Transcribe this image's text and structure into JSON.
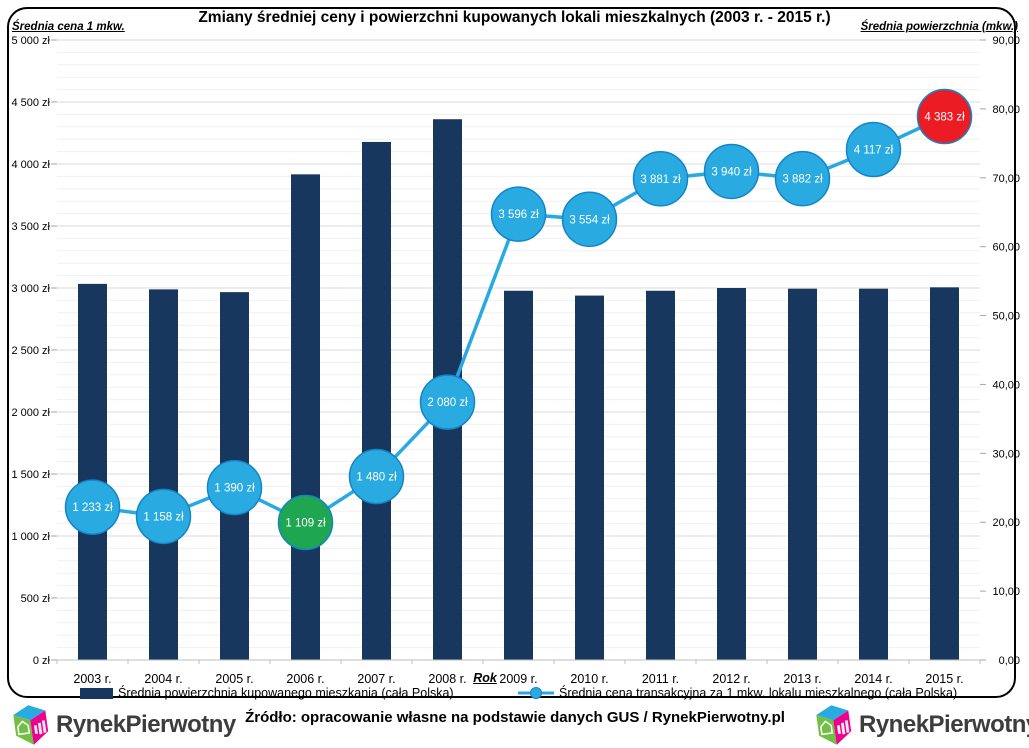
{
  "chart_data": {
    "type": "combo_bar_line",
    "title": "Zmiany średniej ceny i powierzchni kupowanych lokali mieszkalnych (2003 r. - 2015 r.)",
    "categories": [
      "2003 r.",
      "2004 r.",
      "2005 r.",
      "2006 r.",
      "2007 r.",
      "2008 r.",
      "2009 r.",
      "2010 r.",
      "2011 r.",
      "2012 r.",
      "2013 r.",
      "2014 r.",
      "2015 r."
    ],
    "x_axis_title": "Rok",
    "grid": true,
    "legend_position": "bottom",
    "left_axis": {
      "label": "Średnia cena 1 mkw.",
      "min": 0,
      "max": 5000,
      "step": 500,
      "minor_step": 100,
      "ticks": [
        "5 000 zł",
        "4 500 zł",
        "4 000 zł",
        "3 500 zł",
        "3 000 zł",
        "2 500 zł",
        "2 000 zł",
        "1 500 zł",
        "1 000 zł",
        "500 zł",
        "0 zł"
      ]
    },
    "right_axis": {
      "label": "Średnia powierzchnia (mkw.)",
      "min": 0,
      "max": 90,
      "step": 10,
      "ticks": [
        "90,00",
        "80,00",
        "70,00",
        "60,00",
        "50,00",
        "40,00",
        "30,00",
        "20,00",
        "10,00",
        "0,00"
      ]
    },
    "series": [
      {
        "name": "Średnia powierzchnia kupowanego mieszkania (cała Polska)",
        "type": "bar",
        "axis": "right",
        "color": "#17375E",
        "values": [
          54.6,
          53.8,
          53.4,
          70.5,
          75.2,
          78.5,
          53.6,
          52.9,
          53.6,
          54.0,
          53.9,
          53.9,
          54.1
        ]
      },
      {
        "name": "Średnia cena transakcyjna za 1 mkw. lokalu mieszkalnego (cała Polska)",
        "type": "line",
        "axis": "left",
        "color": "#29A9E1",
        "marker_stroke": "#1584C6",
        "values": [
          1233,
          1158,
          1390,
          1109,
          1480,
          2080,
          3596,
          3554,
          3881,
          3940,
          3882,
          4117,
          4383
        ],
        "labels": [
          "1 233 zł",
          "1 158 zł",
          "1 390 zł",
          "1 109 zł",
          "1 480 zł",
          "2 080 zł",
          "3 596 zł",
          "3 554 zł",
          "3 881 zł",
          "3 940 zł",
          "3 882 zł",
          "4 117 zł",
          "4 383 zł"
        ],
        "marker_colors": [
          "#29ABE2",
          "#29ABE2",
          "#29ABE2",
          "#1EA750",
          "#29ABE2",
          "#29ABE2",
          "#29ABE2",
          "#29ABE2",
          "#29ABE2",
          "#29ABE2",
          "#29ABE2",
          "#29ABE2",
          "#EB1C24"
        ]
      }
    ]
  },
  "footer": {
    "source": "Źródło: opracowanie własne na podstawie danych GUS / RynekPierwotny.pl",
    "brand": "RynekPierwotny"
  }
}
